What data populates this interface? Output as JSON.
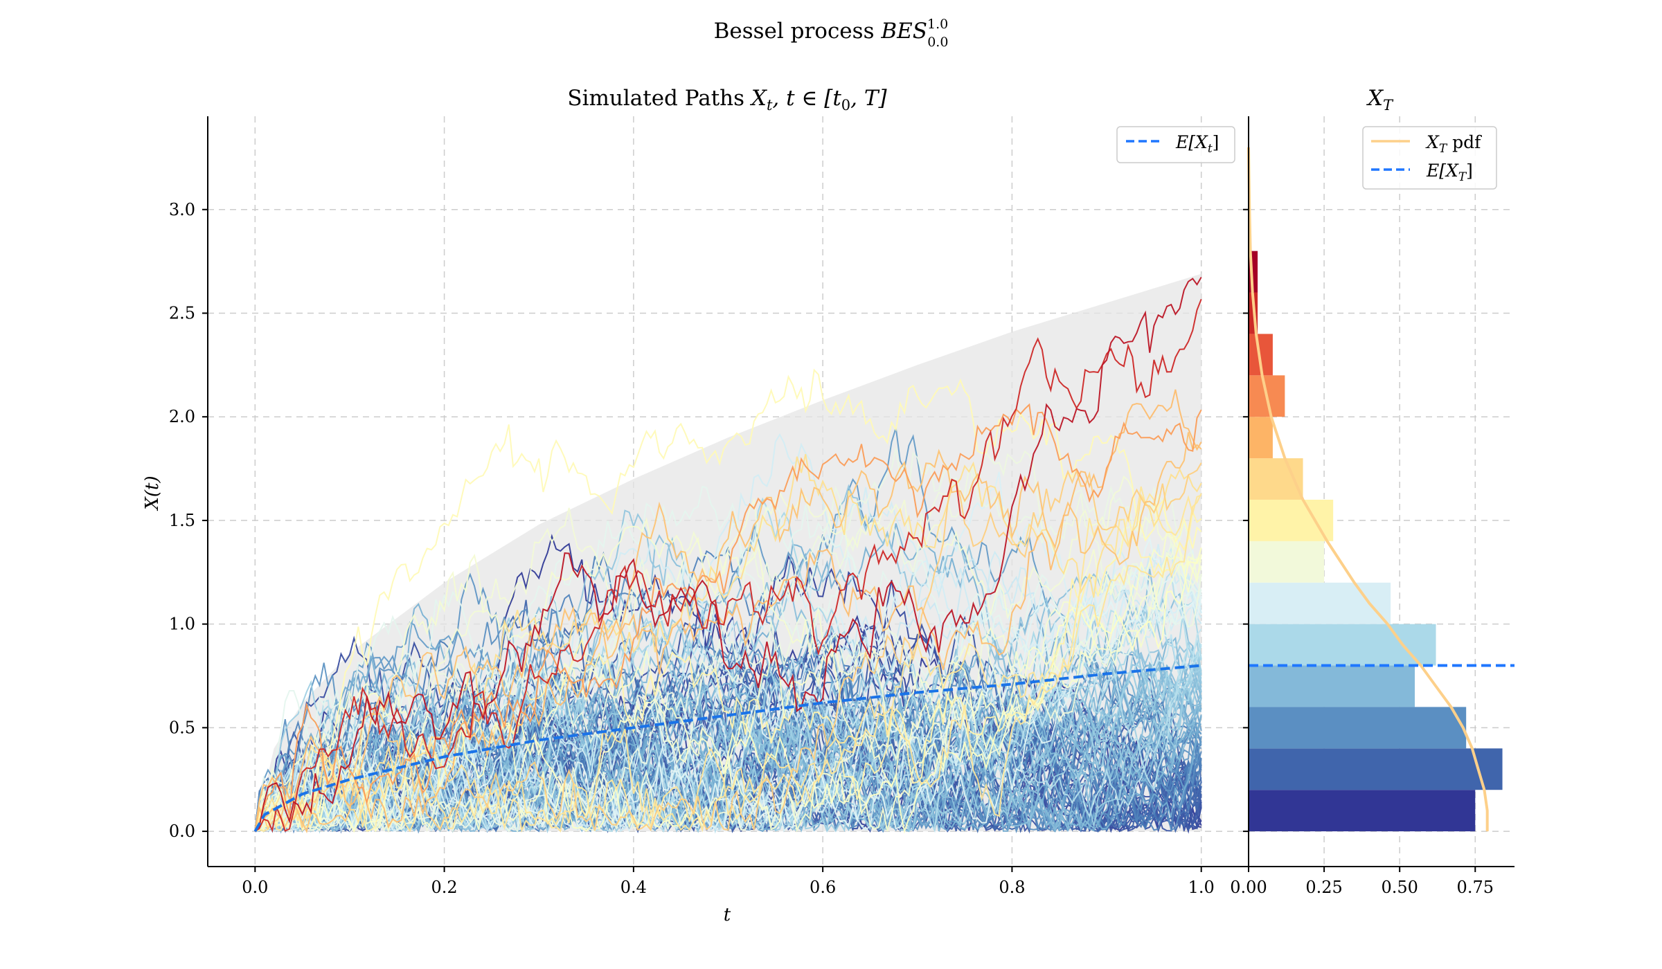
{
  "figure": {
    "suptitle_text": "Bessel process ",
    "suptitle_math": "BES",
    "suptitle_sup": "1.0",
    "suptitle_sub": "0.0"
  },
  "chart_data": [
    {
      "type": "line",
      "title_text": "Simulated Paths ",
      "title_math": "X",
      "title_math_sub": "t",
      "title_math_rest": ", t ∈ [t",
      "title_math_sub2": "0",
      "title_math_end": ", T]",
      "xlabel": "t",
      "ylabel": "X(t)",
      "xlim": [
        -0.05,
        1.05
      ],
      "ylim": [
        -0.17,
        3.45
      ],
      "x_ticks": [
        "0.0",
        "0.2",
        "0.4",
        "0.6",
        "0.8",
        "1.0"
      ],
      "x_tick_values": [
        0.0,
        0.2,
        0.4,
        0.6,
        0.8,
        1.0
      ],
      "y_ticks": [
        "0.0",
        "0.5",
        "1.0",
        "1.5",
        "2.0",
        "2.5",
        "3.0"
      ],
      "y_tick_values": [
        0.0,
        0.5,
        1.0,
        1.5,
        2.0,
        2.5,
        3.0
      ],
      "grid": true,
      "legend_placement": "top-right",
      "legend": [
        {
          "math": "E[X",
          "sub": "t",
          "end": "]",
          "style": "dashed",
          "color": "#1f77ff"
        }
      ],
      "mean_curve": {
        "name": "E[X_t]",
        "color": "#1a73e8",
        "x": [
          0.0,
          0.01,
          0.05,
          0.1,
          0.2,
          0.3,
          0.4,
          0.5,
          0.6,
          0.7,
          0.8,
          0.9,
          1.0
        ],
        "y": [
          0.0,
          0.08,
          0.18,
          0.25,
          0.36,
          0.44,
          0.5,
          0.56,
          0.62,
          0.67,
          0.71,
          0.76,
          0.8
        ]
      },
      "quantile_band": {
        "color": "#e5e5e5",
        "x": [
          0.0,
          0.02,
          0.05,
          0.1,
          0.2,
          0.3,
          0.4,
          0.5,
          0.6,
          0.7,
          0.8,
          0.9,
          1.0
        ],
        "lower": [
          0.0,
          0.0,
          0.0,
          0.0,
          0.0,
          0.0,
          0.0,
          0.0,
          0.0,
          0.0,
          0.0,
          0.0,
          0.0
        ],
        "upper": [
          0.0,
          0.4,
          0.62,
          0.86,
          1.2,
          1.48,
          1.7,
          1.9,
          2.08,
          2.25,
          2.41,
          2.55,
          2.69
        ]
      },
      "paths": {
        "count": 110,
        "n_steps": 220,
        "colormap": [
          "#313695",
          "#4575b4",
          "#74add1",
          "#abd9e9",
          "#e0f3f8",
          "#ffffbf",
          "#fee090",
          "#fdae61",
          "#f46d43",
          "#d73027",
          "#a50026"
        ]
      }
    },
    {
      "type": "bar",
      "orientation": "horizontal",
      "title_math": "X",
      "title_sub": "T",
      "xlim": [
        0.0,
        0.88
      ],
      "x_ticks": [
        "0.00",
        "0.25",
        "0.50",
        "0.75"
      ],
      "x_tick_values": [
        0.0,
        0.25,
        0.5,
        0.75
      ],
      "grid": true,
      "legend_placement": "top-right",
      "legend": [
        {
          "math": "X",
          "sub": "T",
          "end": " pdf",
          "style": "solid",
          "color": "#fdd08a"
        },
        {
          "math": "E[X",
          "sub": "T",
          "end": "]",
          "style": "dashed",
          "color": "#1f77ff"
        }
      ],
      "bin_edges": [
        0.0,
        0.2,
        0.4,
        0.6,
        0.8,
        1.0,
        1.2,
        1.4,
        1.6,
        1.8,
        2.0,
        2.2,
        2.4,
        2.6,
        2.8
      ],
      "densities": [
        0.75,
        0.84,
        0.72,
        0.55,
        0.62,
        0.47,
        0.25,
        0.28,
        0.18,
        0.08,
        0.12,
        0.08,
        0.03,
        0.03
      ],
      "bar_colors": [
        "#313695",
        "#4065ac",
        "#5b8fc2",
        "#84b9d9",
        "#abd9e9",
        "#d8eef5",
        "#f2f9da",
        "#fff3a8",
        "#fed98b",
        "#fdb466",
        "#f78a52",
        "#e8563a",
        "#cc2a28",
        "#a50026"
      ],
      "mean_value": 0.8,
      "pdf": {
        "color": "#fdd08a",
        "y": [
          0.0,
          0.1,
          0.2,
          0.3,
          0.4,
          0.5,
          0.6,
          0.7,
          0.8,
          0.9,
          1.0,
          1.1,
          1.2,
          1.4,
          1.6,
          1.8,
          2.0,
          2.2,
          2.4,
          2.6,
          2.8,
          3.0,
          3.2,
          3.3
        ],
        "density": [
          0.79,
          0.79,
          0.78,
          0.76,
          0.74,
          0.71,
          0.67,
          0.62,
          0.57,
          0.51,
          0.46,
          0.4,
          0.35,
          0.26,
          0.18,
          0.12,
          0.075,
          0.045,
          0.025,
          0.013,
          0.006,
          0.003,
          0.001,
          0.0
        ]
      }
    }
  ]
}
